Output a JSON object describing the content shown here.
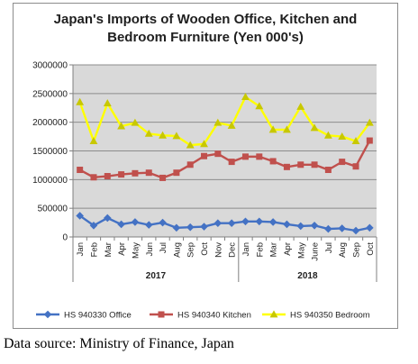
{
  "chart_data": {
    "type": "line",
    "title_lines": [
      "Japan's Imports of  Wooden  Office, Kitchen and",
      "Bedroom Furniture (Yen 000's)"
    ],
    "categories": [
      "Jan",
      "Feb",
      "Mar",
      "Apr",
      "May",
      "Jun",
      "Jul",
      "Aug",
      "Sep",
      "Oct",
      "Nov",
      "Dec",
      "Jan",
      "Feb",
      "Mar",
      "Apr",
      "May",
      "June",
      "Jul",
      "Aug",
      "Sep",
      "Oct"
    ],
    "year_groups": [
      {
        "label": "2017",
        "start": 0,
        "end": 11
      },
      {
        "label": "2018",
        "start": 12,
        "end": 21
      }
    ],
    "ylim": [
      0,
      3000000
    ],
    "yticks": [
      0,
      500000,
      1000000,
      1500000,
      2000000,
      2500000,
      3000000
    ],
    "ytick_labels": [
      "0",
      "500000",
      "1000000",
      "1500000",
      "2000000",
      "2500000",
      "3000000"
    ],
    "grid": true,
    "legend_position": "bottom",
    "series": [
      {
        "name": "HS 940330 Office",
        "color": "#4472c4",
        "marker": "diamond",
        "values": [
          370000,
          200000,
          330000,
          220000,
          260000,
          210000,
          250000,
          160000,
          170000,
          180000,
          240000,
          240000,
          270000,
          270000,
          260000,
          220000,
          190000,
          200000,
          140000,
          150000,
          110000,
          160000
        ]
      },
      {
        "name": "HS 940340 Kitchen",
        "color": "#c0504d",
        "marker": "square",
        "values": [
          1170000,
          1040000,
          1060000,
          1090000,
          1110000,
          1120000,
          1030000,
          1120000,
          1260000,
          1410000,
          1450000,
          1310000,
          1400000,
          1400000,
          1320000,
          1220000,
          1260000,
          1260000,
          1170000,
          1310000,
          1230000,
          1680000
        ]
      },
      {
        "name": "HS 940350 Bedroom",
        "color": "#ffff00",
        "marker": "triangle",
        "values": [
          2350000,
          1670000,
          2330000,
          1930000,
          1990000,
          1800000,
          1770000,
          1760000,
          1600000,
          1620000,
          1990000,
          1940000,
          2440000,
          2280000,
          1870000,
          1870000,
          2270000,
          1900000,
          1770000,
          1750000,
          1670000,
          1990000
        ]
      }
    ]
  },
  "source_note": "Data source: Ministry of Finance, Japan"
}
